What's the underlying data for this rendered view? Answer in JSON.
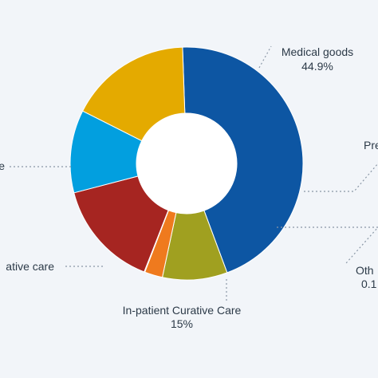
{
  "chart_data": {
    "type": "pie",
    "variant": "donut",
    "title": "",
    "slices": [
      {
        "name": "Medical goods",
        "value": 44.9,
        "value_label": "44.9%",
        "color": "#0d56a3"
      },
      {
        "name": "Pre",
        "value": 9.0,
        "value_label": "",
        "color": "#a0a020"
      },
      {
        "name": "",
        "value": 2.5,
        "value_label": "",
        "color": "#ef7a1e"
      },
      {
        "name": "Oth",
        "value": 0.1,
        "value_label": "0.1",
        "color": "#6b7d92"
      },
      {
        "name": "In-patient Curative Care",
        "value": 15,
        "value_label": "15%",
        "color": "#a62521"
      },
      {
        "name": "ative care",
        "value": 11.5,
        "value_label": "",
        "color": "#029fdf"
      },
      {
        "name": "e",
        "value": 17.0,
        "value_label": "",
        "color": "#e4aa00"
      }
    ],
    "legend": "none"
  }
}
